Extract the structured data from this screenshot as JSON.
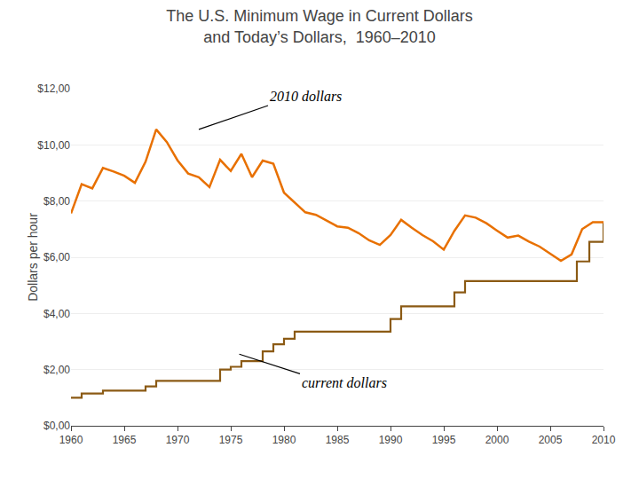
{
  "chart_data": {
    "type": "line",
    "title": "The U.S. Minimum Wage in Current Dollars\nand Today’s Dollars,  1960–2010",
    "ylabel": "Dollars per hour",
    "xlim": [
      1960,
      2010
    ],
    "ylim": [
      0,
      12
    ],
    "xticks": [
      1960,
      1965,
      1970,
      1975,
      1980,
      1985,
      1990,
      1995,
      2000,
      2005,
      2010
    ],
    "yticks": [
      {
        "value": 0,
        "label": "$0,00"
      },
      {
        "value": 2,
        "label": "$2,00"
      },
      {
        "value": 4,
        "label": "$4,00"
      },
      {
        "value": 6,
        "label": "$6,00"
      },
      {
        "value": 8,
        "label": "$8,00"
      },
      {
        "value": 10,
        "label": "$10,00"
      },
      {
        "value": 12,
        "label": "$12,00"
      }
    ],
    "grid": "y",
    "series": [
      {
        "type": "step",
        "color": "#8B5a14",
        "x": [
          1960,
          1961,
          1962,
          1963,
          1964,
          1965,
          1966,
          1967,
          1968,
          1969,
          1970,
          1971,
          1972,
          1973,
          1974,
          1975,
          1976,
          1977,
          1978,
          1979,
          1980,
          1981,
          1982,
          1983,
          1984,
          1985,
          1986,
          1987,
          1988,
          1989,
          1990,
          1991,
          1992,
          1993,
          1994,
          1995,
          1996,
          1997,
          1998,
          1999,
          2000,
          2001,
          2002,
          2003,
          2004,
          2005,
          2006,
          2007,
          2007.5,
          2008,
          2008.67,
          2009,
          2010
        ],
        "values": [
          1.0,
          1.15,
          1.15,
          1.25,
          1.25,
          1.25,
          1.25,
          1.4,
          1.6,
          1.6,
          1.6,
          1.6,
          1.6,
          1.6,
          2.0,
          2.1,
          2.3,
          2.3,
          2.65,
          2.9,
          3.1,
          3.35,
          3.35,
          3.35,
          3.35,
          3.35,
          3.35,
          3.35,
          3.35,
          3.35,
          3.8,
          4.25,
          4.25,
          4.25,
          4.25,
          4.25,
          4.75,
          5.15,
          5.15,
          5.15,
          5.15,
          5.15,
          5.15,
          5.15,
          5.15,
          5.15,
          5.15,
          5.15,
          5.85,
          5.85,
          6.55,
          6.55,
          7.25
        ]
      },
      {
        "type": "line",
        "color": "#e87000",
        "x": [
          1960,
          1961,
          1962,
          1963,
          1964,
          1965,
          1966,
          1967,
          1968,
          1969,
          1970,
          1971,
          1972,
          1973,
          1974,
          1975,
          1976,
          1977,
          1978,
          1979,
          1980,
          1981,
          1982,
          1983,
          1984,
          1985,
          1986,
          1987,
          1988,
          1989,
          1990,
          1991,
          1992,
          1993,
          1994,
          1995,
          1996,
          1997,
          1998,
          1999,
          2000,
          2001,
          2002,
          2003,
          2004,
          2005,
          2006,
          2007,
          2008,
          2009,
          2010
        ],
        "values": [
          7.56,
          8.6,
          8.45,
          9.18,
          9.05,
          8.9,
          8.65,
          9.4,
          10.55,
          10.1,
          9.45,
          8.98,
          8.85,
          8.5,
          9.47,
          9.07,
          9.68,
          8.85,
          9.44,
          9.33,
          8.3,
          7.95,
          7.6,
          7.51,
          7.3,
          7.1,
          7.05,
          6.86,
          6.6,
          6.44,
          6.79,
          7.33,
          7.05,
          6.79,
          6.57,
          6.27,
          6.94,
          7.49,
          7.41,
          7.21,
          6.95,
          6.7,
          6.77,
          6.56,
          6.38,
          6.13,
          5.87,
          6.1,
          7.0,
          7.25,
          7.25
        ]
      }
    ],
    "annotations": [
      {
        "text": "2010 dollars",
        "x": 1972.0,
        "y": 10.55,
        "text_x": 1978.5,
        "text_y": 11.4
      },
      {
        "text": "current dollars",
        "x": 1975.8,
        "y": 2.55,
        "text_x": 1981.5,
        "text_y": 1.85
      }
    ]
  }
}
